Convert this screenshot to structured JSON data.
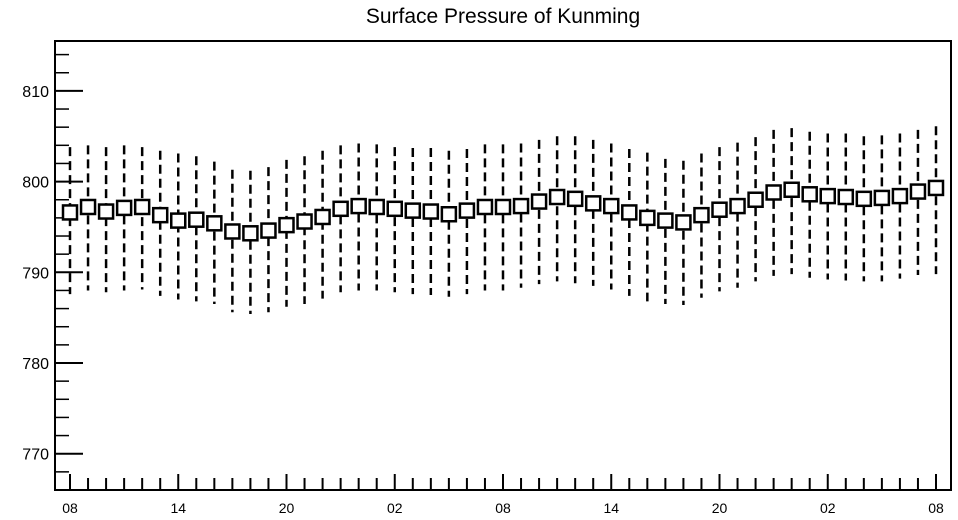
{
  "chart_data": {
    "type": "scatter",
    "title": "Surface Pressure of Kunming",
    "xlabel": "",
    "ylabel": "",
    "ylim": [
      766,
      815.5
    ],
    "y_ticks": [
      770,
      780,
      790,
      800,
      810
    ],
    "y_tick_labels": [
      "770",
      "780",
      "790",
      "800",
      "810"
    ],
    "x_tick_labels": [
      "08",
      "14",
      "20",
      "02",
      "08",
      "14",
      "20",
      "02",
      "08"
    ],
    "grid": false,
    "marker": "open-square",
    "series": [
      {
        "values": [
          796.6,
          797.2,
          796.7,
          797.1,
          797.2,
          796.3,
          795.7,
          795.8,
          795.4,
          794.5,
          794.3,
          794.6,
          795.2,
          795.6,
          796.1,
          797.0,
          797.3,
          797.2,
          797.0,
          796.8,
          796.7,
          796.4,
          796.8,
          797.2,
          797.2,
          797.3,
          797.8,
          798.3,
          798.1,
          797.6,
          797.3,
          796.6,
          796.0,
          795.7,
          795.5,
          796.3,
          796.9,
          797.3,
          798.0,
          798.8,
          799.1,
          798.6,
          798.4,
          798.3,
          798.1,
          798.2,
          798.4,
          798.9,
          799.3
        ],
        "upper": [
          803.8,
          804.0,
          803.8,
          804.0,
          803.8,
          803.4,
          803.1,
          802.8,
          802.2,
          801.3,
          801.2,
          801.6,
          802.4,
          802.8,
          803.4,
          804.0,
          804.2,
          804.1,
          803.8,
          803.7,
          803.7,
          803.4,
          803.6,
          804.1,
          804.1,
          804.2,
          804.6,
          805.0,
          805.0,
          804.6,
          804.2,
          803.6,
          803.2,
          802.5,
          802.3,
          803.1,
          803.8,
          804.3,
          804.9,
          805.7,
          805.9,
          805.5,
          805.3,
          805.3,
          805.0,
          805.1,
          805.3,
          805.7,
          806.1
        ],
        "lower": [
          787.6,
          788.0,
          787.8,
          788.0,
          788.1,
          787.4,
          787.0,
          786.8,
          786.5,
          785.6,
          785.4,
          785.6,
          786.2,
          786.5,
          787.1,
          787.8,
          788.0,
          788.0,
          787.8,
          787.6,
          787.5,
          787.3,
          787.6,
          788.0,
          788.0,
          788.3,
          788.7,
          789.0,
          788.8,
          788.5,
          788.1,
          787.4,
          786.8,
          786.5,
          786.4,
          787.2,
          787.9,
          788.3,
          789.0,
          789.6,
          789.8,
          789.4,
          789.2,
          789.1,
          789.0,
          789.0,
          789.3,
          789.7,
          789.8
        ]
      }
    ]
  }
}
